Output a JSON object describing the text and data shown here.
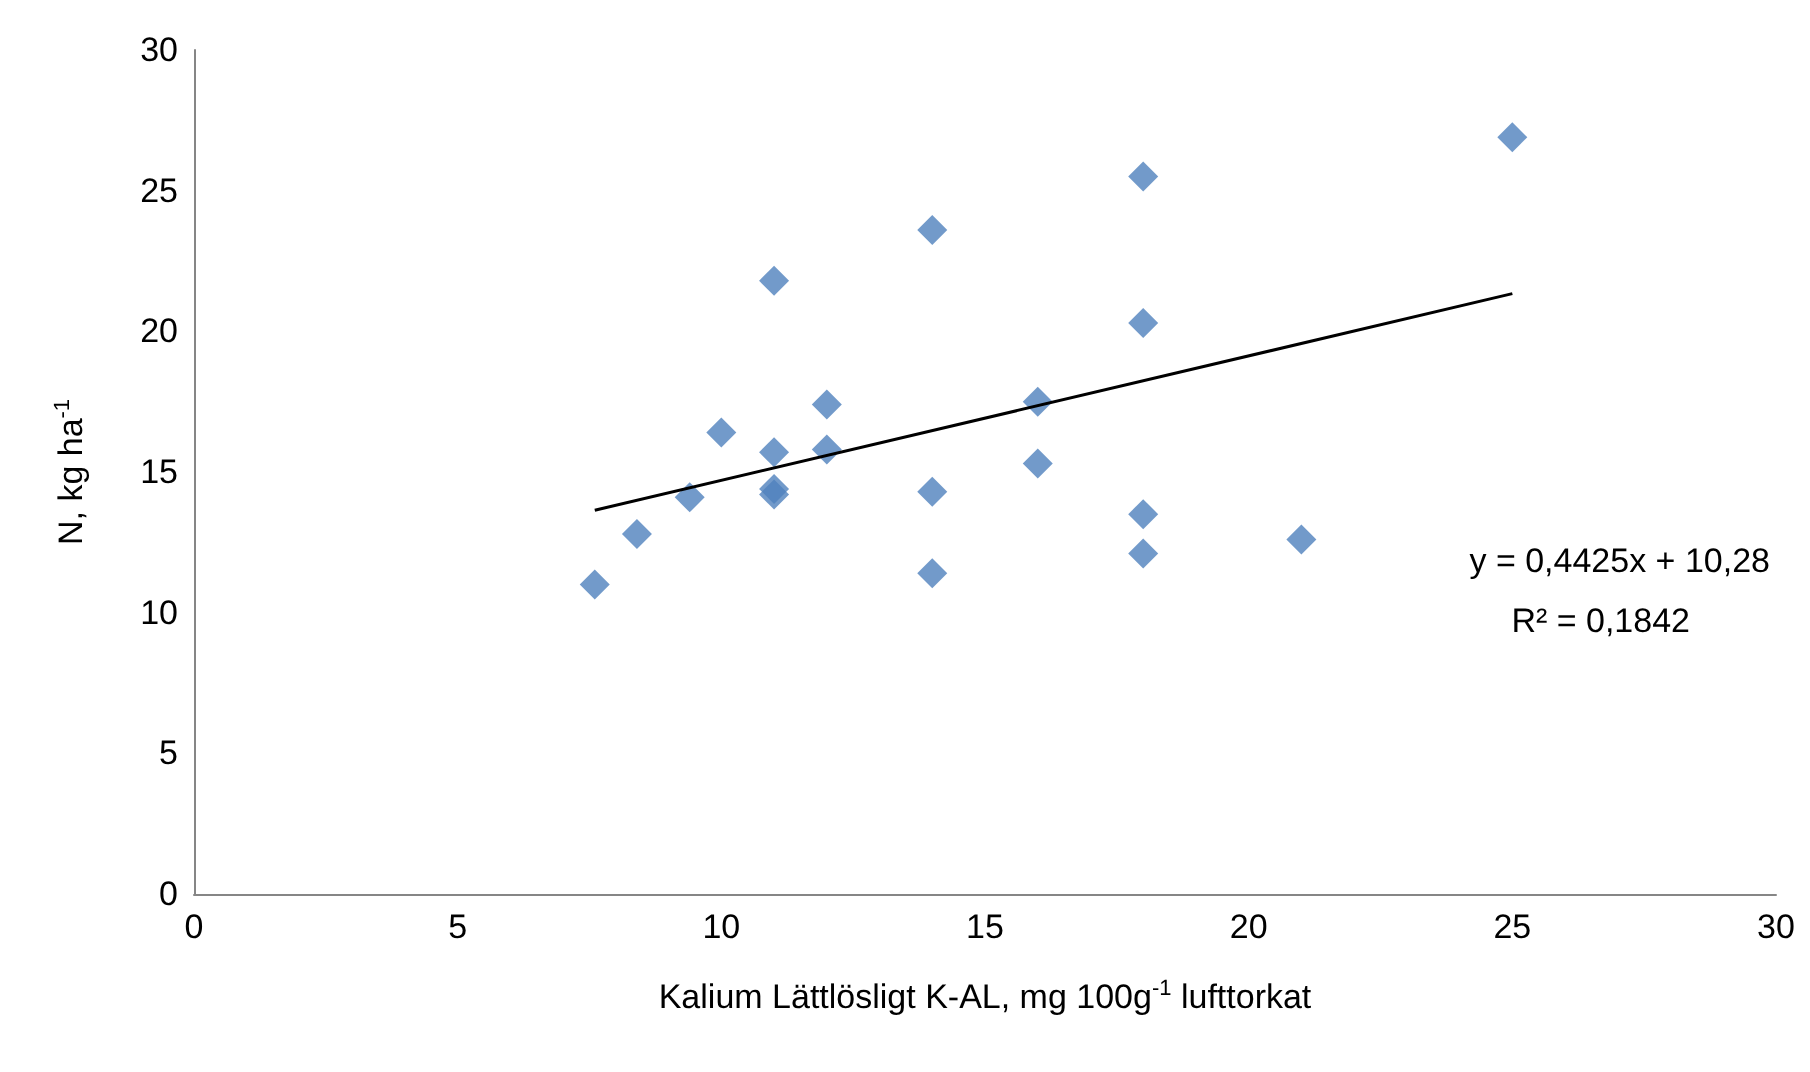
{
  "chart_data": {
    "type": "scatter",
    "xlabel": "Kalium Lättlösligt K-AL, mg 100g$^{-1}$ lufttorkat",
    "ylabel": "N, kg ha$^{-1}$",
    "xlim": [
      0,
      30
    ],
    "xticks": [
      0,
      5,
      10,
      15,
      20,
      25,
      30
    ],
    "ylim": [
      0,
      30
    ],
    "yticks": [
      0,
      5,
      10,
      15,
      20,
      25,
      30
    ],
    "grid": false,
    "marker": "diamond",
    "series": [
      {
        "color": "#4f81bd",
        "x": [
          7.6,
          8.4,
          9.4,
          10,
          11,
          11,
          11,
          11,
          12,
          12,
          14,
          14,
          14,
          16,
          16,
          18,
          18,
          18,
          18,
          21,
          25
        ],
        "values": [
          11.0,
          12.8,
          14.1,
          16.4,
          21.8,
          15.7,
          14.4,
          14.2,
          17.4,
          15.8,
          23.6,
          14.3,
          11.4,
          17.5,
          15.3,
          25.5,
          20.3,
          13.5,
          12.1,
          12.6,
          26.9
        ]
      },
      {
        "type": "line",
        "color": "#000000",
        "marker": "none",
        "x": [
          7.6,
          25
        ],
        "values": [
          13.64,
          21.34
        ]
      }
    ],
    "annotations": [
      "y = 0,4425x + 10,28",
      "R² = 0,1842"
    ]
  }
}
